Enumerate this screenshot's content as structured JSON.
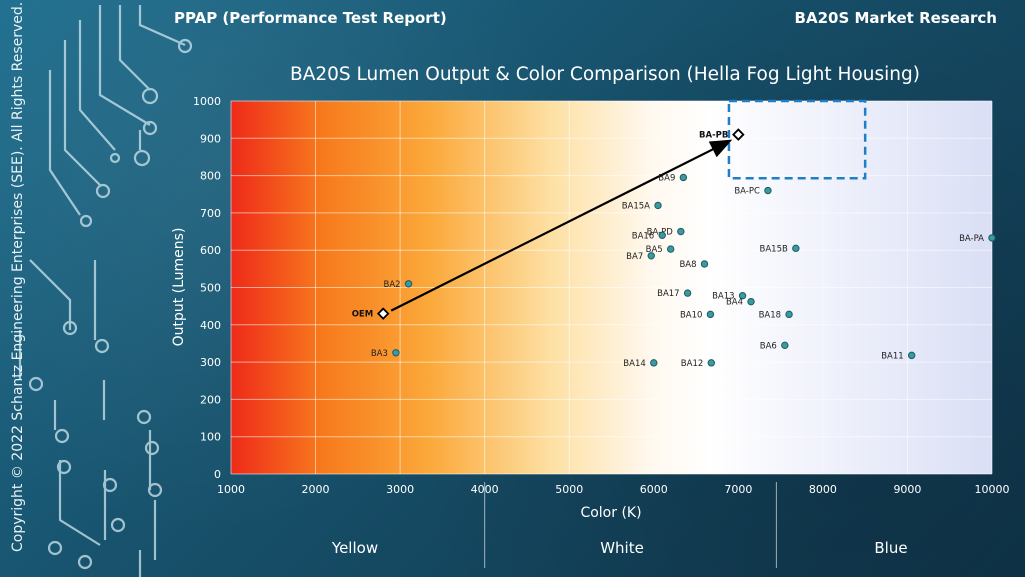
{
  "header": {
    "left": "PPAP (Performance Test Report)",
    "right": "BA20S Market Research"
  },
  "copyright": "Copyright © 2022 Schantz Engineering Enterprises (SEE).  All Rights Reserved.",
  "colors": {
    "point_fill": "#3a9aa2",
    "highlight_box": "#1e7fc7",
    "arrow": "#000000",
    "background": "#17506a"
  },
  "chart_data": {
    "type": "scatter",
    "title": "BA20S Lumen Output & Color Comparison (Hella Fog Light Housing)",
    "xlabel": "Color (K)",
    "ylabel": "Output (Lumens)",
    "xlim": [
      1000,
      10000
    ],
    "ylim": [
      0,
      1000
    ],
    "xticks": [
      1000,
      2000,
      3000,
      4000,
      5000,
      6000,
      7000,
      8000,
      9000,
      10000
    ],
    "yticks": [
      0,
      100,
      200,
      300,
      400,
      500,
      600,
      700,
      800,
      900,
      1000
    ],
    "grid": true,
    "background_gradient": "red-orange (warm) to white to light blue (cool) along x",
    "bands": [
      {
        "label": "Yellow",
        "from": 1000,
        "to": 4000
      },
      {
        "label": "White",
        "from": 4000,
        "to": 7450
      },
      {
        "label": "Blue",
        "from": 7450,
        "to": 10000
      }
    ],
    "points": [
      {
        "name": "OEM",
        "x": 2800,
        "y": 430,
        "marker": "diamond"
      },
      {
        "name": "BA-PB",
        "x": 7000,
        "y": 910,
        "marker": "diamond"
      },
      {
        "name": "BA2",
        "x": 3100,
        "y": 510
      },
      {
        "name": "BA3",
        "x": 2950,
        "y": 325
      },
      {
        "name": "BA9",
        "x": 6350,
        "y": 795
      },
      {
        "name": "BA-PC",
        "x": 7350,
        "y": 760
      },
      {
        "name": "BA15A",
        "x": 6050,
        "y": 720
      },
      {
        "name": "BA-PD",
        "x": 6320,
        "y": 650
      },
      {
        "name": "BA16",
        "x": 6100,
        "y": 640
      },
      {
        "name": "BA5",
        "x": 6200,
        "y": 603
      },
      {
        "name": "BA7",
        "x": 5970,
        "y": 585
      },
      {
        "name": "BA8",
        "x": 6600,
        "y": 563
      },
      {
        "name": "BA15B",
        "x": 7680,
        "y": 605
      },
      {
        "name": "BA-PA",
        "x": 10000,
        "y": 633
      },
      {
        "name": "BA17",
        "x": 6400,
        "y": 485
      },
      {
        "name": "BA13",
        "x": 7050,
        "y": 478
      },
      {
        "name": "BA4",
        "x": 7150,
        "y": 462
      },
      {
        "name": "BA10",
        "x": 6670,
        "y": 428
      },
      {
        "name": "BA18",
        "x": 7600,
        "y": 428
      },
      {
        "name": "BA6",
        "x": 7550,
        "y": 345
      },
      {
        "name": "BA11",
        "x": 9050,
        "y": 318
      },
      {
        "name": "BA14",
        "x": 6000,
        "y": 298
      },
      {
        "name": "BA12",
        "x": 6680,
        "y": 298
      }
    ],
    "annotations": {
      "arrow": {
        "from": "OEM",
        "to": "BA-PB"
      },
      "highlight_box": {
        "x": [
          6960,
          8500
        ],
        "y": [
          900,
          1000
        ],
        "style": "dashed"
      }
    }
  }
}
